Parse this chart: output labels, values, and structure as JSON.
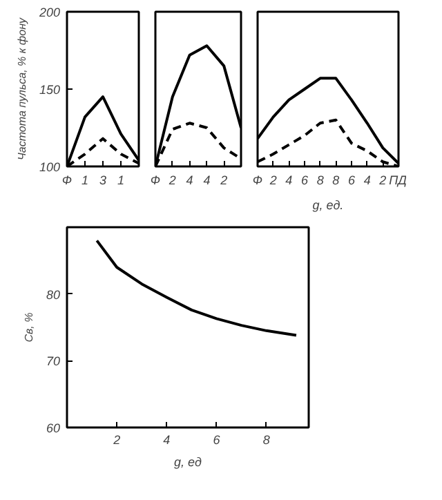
{
  "chart_data": [
    {
      "type": "line",
      "ylabel": "Частота пульса, % к фону",
      "categories": [
        "Ф",
        "1",
        "3",
        "1",
        null
      ],
      "ylim": [
        100,
        200
      ],
      "yticks": [
        100,
        150,
        200
      ],
      "series": [
        {
          "color": "#000000",
          "line_style": "solid",
          "values": [
            100,
            132,
            145,
            121,
            104
          ]
        },
        {
          "color": "#000000",
          "line_style": "dashed",
          "values": [
            100,
            108,
            118,
            108,
            102
          ]
        }
      ]
    },
    {
      "type": "line",
      "categories": [
        "Ф",
        "2",
        "4",
        "4",
        "2",
        null
      ],
      "ylim": [
        100,
        200
      ],
      "tick_labels": "x",
      "series": [
        {
          "color": "#000000",
          "line_style": "solid",
          "values": [
            100,
            145,
            172,
            178,
            165,
            125
          ]
        },
        {
          "color": "#000000",
          "line_style": "dashed",
          "values": [
            100,
            124,
            128,
            125,
            112,
            105
          ]
        }
      ]
    },
    {
      "type": "line",
      "xlabel": "g, ед.",
      "categories": [
        "Ф",
        "2",
        "4",
        "6",
        "8",
        "8",
        "6",
        "4",
        "2",
        "ПД"
      ],
      "ylim": [
        100,
        200
      ],
      "tick_labels": "x",
      "series": [
        {
          "color": "#000000",
          "line_style": "solid",
          "values": [
            118,
            132,
            143,
            150,
            157,
            157,
            143,
            128,
            112,
            102
          ]
        },
        {
          "color": "#000000",
          "line_style": "dashed",
          "values": [
            103,
            108,
            114,
            120,
            128,
            130,
            115,
            110,
            103,
            100
          ]
        }
      ]
    },
    {
      "type": "line",
      "xlabel": "g, ед",
      "ylabel": "Cв, %",
      "xlim": [
        0,
        9.7
      ],
      "xticks": [
        2,
        4,
        6,
        8
      ],
      "ylim": [
        60,
        90
      ],
      "yticks": [
        60,
        70,
        80
      ],
      "series": [
        {
          "color": "#000000",
          "line_style": "solid",
          "x": [
            1.2,
            2,
            3,
            4,
            5,
            6,
            7,
            8,
            9.2
          ],
          "values": [
            88,
            84,
            81.5,
            79.5,
            77.6,
            76.3,
            75.3,
            74.5,
            73.8
          ]
        }
      ]
    }
  ]
}
